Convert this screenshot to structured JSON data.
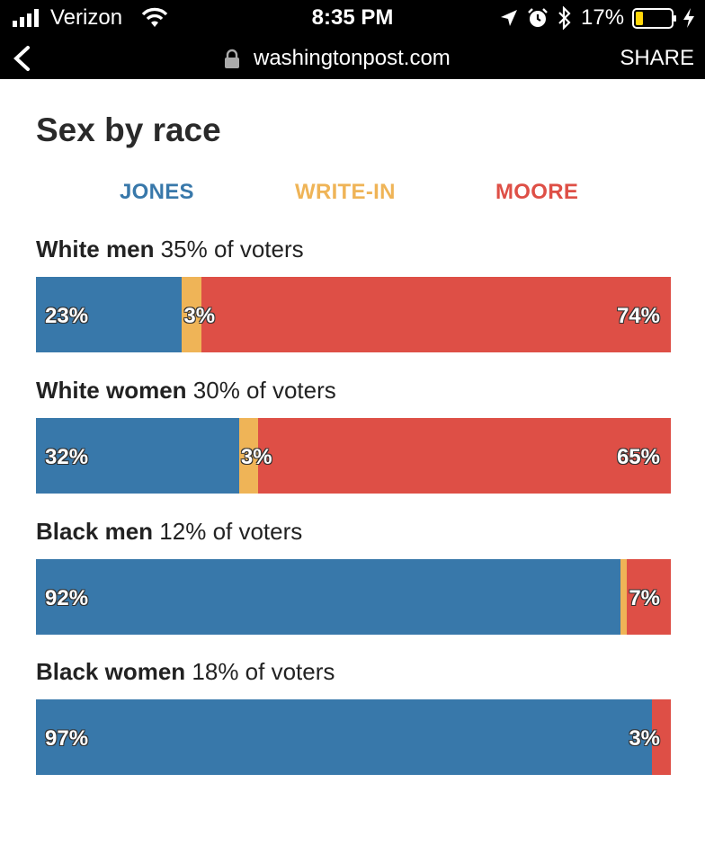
{
  "status_bar": {
    "carrier": "Verizon",
    "time": "8:35 PM",
    "battery": "17%",
    "icons": [
      "signal-icon",
      "wifi-icon",
      "location-arrow-icon",
      "alarm-icon",
      "bluetooth-icon",
      "battery-icon",
      "charging-bolt-icon"
    ]
  },
  "browser": {
    "back_icon": "chevron-left-icon",
    "lock_icon": "lock-icon",
    "url": "washingtonpost.com",
    "share_label": "SHARE"
  },
  "chart_data": {
    "type": "bar",
    "orientation": "horizontal-stacked-100",
    "title": "Sex by race",
    "legend": [
      {
        "name": "JONES",
        "color": "#3878aa"
      },
      {
        "name": "WRITE-IN",
        "color": "#efb457"
      },
      {
        "name": "MOORE",
        "color": "#de4f46"
      }
    ],
    "legend_placement": "top",
    "categories": [
      "White men",
      "White women",
      "Black men",
      "Black women"
    ],
    "category_notes": [
      "35% of voters",
      "30% of voters",
      "12% of voters",
      "18% of voters"
    ],
    "series": [
      {
        "name": "JONES",
        "values": [
          23,
          32,
          92,
          97
        ]
      },
      {
        "name": "WRITE-IN",
        "values": [
          3,
          3,
          1,
          0
        ]
      },
      {
        "name": "MOORE",
        "values": [
          74,
          65,
          7,
          3
        ]
      }
    ],
    "data_labels": [
      [
        "23%",
        "3%",
        "74%"
      ],
      [
        "32%",
        "3%",
        "65%"
      ],
      [
        "92%",
        "",
        "7%"
      ],
      [
        "97%",
        "",
        "3%"
      ]
    ],
    "xlim": [
      0,
      100
    ]
  }
}
